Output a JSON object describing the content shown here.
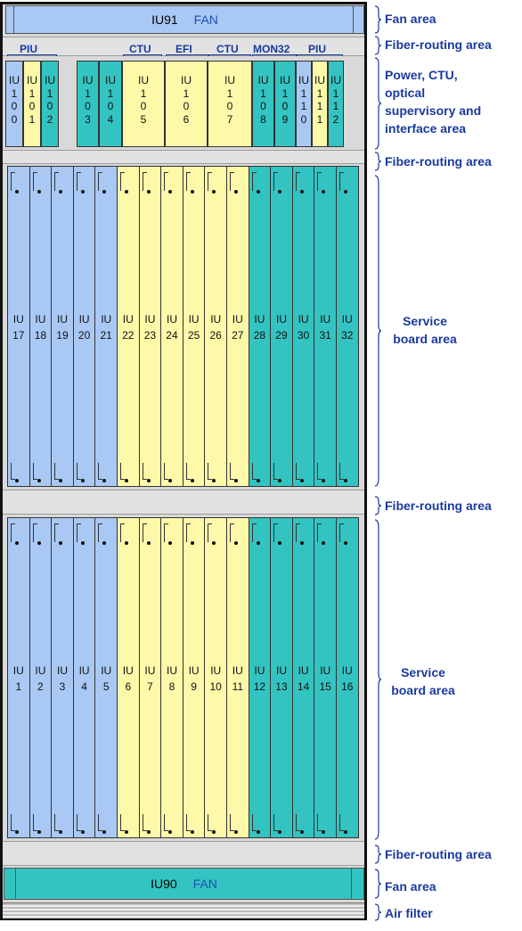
{
  "top_fan": {
    "id": "IU91",
    "label": "FAN"
  },
  "bottom_fan": {
    "id": "IU90",
    "label": "FAN"
  },
  "group_labels": [
    "PIU",
    "CTU",
    "EFI",
    "CTU",
    "MON32",
    "PIU"
  ],
  "top_row": [
    {
      "digits": [
        "IU",
        "1",
        "0",
        "0"
      ],
      "color": "blue"
    },
    {
      "digits": [
        "IU",
        "1",
        "0",
        "1"
      ],
      "color": "yellow"
    },
    {
      "digits": [
        "IU",
        "1",
        "0",
        "2"
      ],
      "color": "teal"
    },
    {
      "digits": [
        "IU",
        "1",
        "0",
        "3"
      ],
      "color": "teal"
    },
    {
      "digits": [
        "IU",
        "1",
        "0",
        "4"
      ],
      "color": "teal"
    },
    {
      "digits": [
        "IU",
        "1",
        "0",
        "5"
      ],
      "color": "yellow"
    },
    {
      "digits": [
        "IU",
        "1",
        "0",
        "6"
      ],
      "color": "yellow"
    },
    {
      "digits": [
        "IU",
        "1",
        "0",
        "7"
      ],
      "color": "yellow"
    },
    {
      "digits": [
        "IU",
        "1",
        "0",
        "8"
      ],
      "color": "teal"
    },
    {
      "digits": [
        "IU",
        "1",
        "0",
        "9"
      ],
      "color": "teal"
    },
    {
      "digits": [
        "IU",
        "1",
        "1",
        "0"
      ],
      "color": "blue"
    },
    {
      "digits": [
        "IU",
        "1",
        "1",
        "1"
      ],
      "color": "yellow"
    },
    {
      "digits": [
        "IU",
        "1",
        "1",
        "2"
      ],
      "color": "teal"
    }
  ],
  "upper_service": {
    "slots": [
      "17",
      "18",
      "19",
      "20",
      "21",
      "22",
      "23",
      "24",
      "25",
      "26",
      "27",
      "28",
      "29",
      "30",
      "31",
      "32"
    ],
    "colors": [
      "blue",
      "blue",
      "blue",
      "blue",
      "blue",
      "yellow",
      "yellow",
      "yellow",
      "yellow",
      "yellow",
      "yellow",
      "teal",
      "teal",
      "teal",
      "teal",
      "teal"
    ]
  },
  "lower_service": {
    "slots": [
      "1",
      "2",
      "3",
      "4",
      "5",
      "6",
      "7",
      "8",
      "9",
      "10",
      "11",
      "12",
      "13",
      "14",
      "15",
      "16"
    ],
    "colors": [
      "blue",
      "blue",
      "blue",
      "blue",
      "blue",
      "yellow",
      "yellow",
      "yellow",
      "yellow",
      "yellow",
      "yellow",
      "teal",
      "teal",
      "teal",
      "teal",
      "teal"
    ]
  },
  "slot_prefix": "IU",
  "side_labels": {
    "fan_top": "Fan area",
    "fiber1": "Fiber-routing area",
    "power": [
      "Power, CTU,",
      "optical",
      "supervisory and",
      "interface area"
    ],
    "fiber2": "Fiber-routing area",
    "service_upper": [
      "Service",
      "board area"
    ],
    "fiber3": "Fiber-routing area",
    "service_lower": [
      "Service",
      "board area"
    ],
    "fiber4": "Fiber-routing area",
    "fan_bottom": "Fan area",
    "air_filter": "Air filter"
  },
  "colors": {
    "blue": "#a9c9f4",
    "yellow": "#fdf9a9",
    "teal": "#33c4c1",
    "label": "#1a3a9e"
  }
}
